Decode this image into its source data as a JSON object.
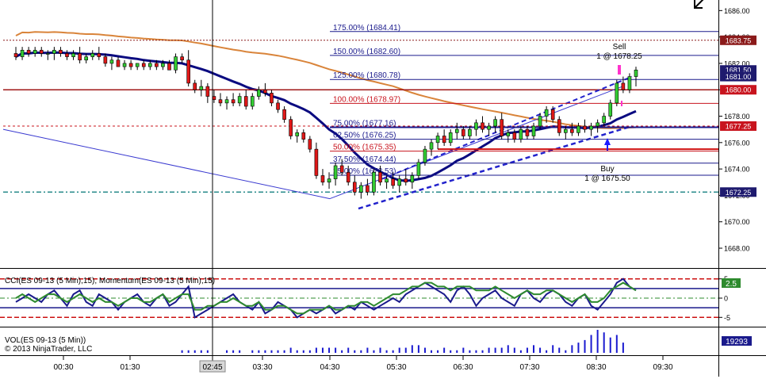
{
  "chart_data": {
    "type": "candlestick",
    "instrument": "ES 09-13",
    "copyright": "© 2013 NinjaTrader, LLC",
    "price_axis": {
      "range": [
        1666.5,
        1686.8
      ],
      "ticks": [
        "1686.00",
        "1684.00",
        "1682.00",
        "1680.00",
        "1678.00",
        "1676.00",
        "1674.00",
        "1672.00",
        "1670.00",
        "1668.00"
      ]
    },
    "time_axis": {
      "labels": [
        "00:30",
        "01:30",
        "02:45",
        "03:30",
        "04:30",
        "05:30",
        "06:30",
        "07:30",
        "08:30",
        "09:30"
      ],
      "crosshair_label": "02:45"
    },
    "price_markers": [
      {
        "label": "1683.75",
        "color": "#8b1a1a"
      },
      {
        "label": "1681.50",
        "color": "#1e1a6e"
      },
      {
        "label": "1681.00",
        "color": "#1e1a6e"
      },
      {
        "label": "1680.00",
        "color": "#c8141e"
      },
      {
        "label": "1677.25",
        "color": "#c8141e"
      },
      {
        "label": "1672.25",
        "color": "#1e1a6e"
      }
    ],
    "fibonacci_levels": [
      {
        "label": "175.00% (1684.41)",
        "price": 1684.41,
        "color": "#1a1a8c"
      },
      {
        "label": "150.00% (1682.60)",
        "price": 1682.6,
        "color": "#1a1a8c"
      },
      {
        "label": "125.00% (1680.78)",
        "price": 1680.78,
        "color": "#1a1a8c"
      },
      {
        "label": "100.00% (1678.97)",
        "price": 1678.97,
        "color": "#c8141e"
      },
      {
        "label": "75.00% (1677.16)",
        "price": 1677.16,
        "color": "#1a1a8c"
      },
      {
        "label": "62.50% (1676.25)",
        "price": 1676.25,
        "color": "#1a1a8c"
      },
      {
        "label": "50.00% (1675.35)",
        "price": 1675.35,
        "color": "#c8141e"
      },
      {
        "label": "37.50% (1674.44)",
        "price": 1674.44,
        "color": "#1a1a8c"
      },
      {
        "label": "25.00% (1673.53)",
        "price": 1673.53,
        "color": "#1a1a8c"
      }
    ],
    "sell_label": "Sell",
    "sell_detail": "1 @ 1678.25",
    "buy_label": "Buy",
    "buy_detail": "1 @ 1675.50",
    "oscillator": {
      "title": "CCI(ES 09-13 (5 Min),15), Momentum(ES 09-13 (5 Min),15)",
      "ticks": [
        "5",
        "0",
        "-5"
      ],
      "range": [
        -7,
        7
      ],
      "value_label": "2.5",
      "value": 2.5
    },
    "volume": {
      "title": "VOL(ES 09-13 (5 Min))",
      "value_label": "19293"
    },
    "candles": [
      {
        "o": 1682.75,
        "h": 1683.25,
        "l": 1682.25,
        "c": 1682.5
      },
      {
        "o": 1682.5,
        "h": 1683.25,
        "l": 1682.25,
        "c": 1683.0
      },
      {
        "o": 1683.0,
        "h": 1683.25,
        "l": 1682.5,
        "c": 1682.75
      },
      {
        "o": 1682.75,
        "h": 1683.25,
        "l": 1682.5,
        "c": 1683.0
      },
      {
        "o": 1683.0,
        "h": 1683.25,
        "l": 1682.5,
        "c": 1682.75
      },
      {
        "o": 1682.75,
        "h": 1683.0,
        "l": 1682.25,
        "c": 1682.75
      },
      {
        "o": 1682.75,
        "h": 1683.25,
        "l": 1682.25,
        "c": 1683.0
      },
      {
        "o": 1683.0,
        "h": 1683.25,
        "l": 1682.5,
        "c": 1682.75
      },
      {
        "o": 1682.75,
        "h": 1683.0,
        "l": 1682.25,
        "c": 1682.5
      },
      {
        "o": 1682.5,
        "h": 1683.0,
        "l": 1682.25,
        "c": 1682.75
      },
      {
        "o": 1682.75,
        "h": 1683.25,
        "l": 1682.0,
        "c": 1682.25
      },
      {
        "o": 1682.25,
        "h": 1682.75,
        "l": 1682.0,
        "c": 1682.5
      },
      {
        "o": 1682.5,
        "h": 1683.0,
        "l": 1682.25,
        "c": 1682.75
      },
      {
        "o": 1682.75,
        "h": 1683.25,
        "l": 1682.25,
        "c": 1682.5
      },
      {
        "o": 1682.5,
        "h": 1682.75,
        "l": 1681.75,
        "c": 1682.0
      },
      {
        "o": 1682.0,
        "h": 1682.5,
        "l": 1681.5,
        "c": 1682.25
      },
      {
        "o": 1682.25,
        "h": 1682.5,
        "l": 1681.75,
        "c": 1681.75
      },
      {
        "o": 1681.75,
        "h": 1682.25,
        "l": 1681.5,
        "c": 1682.0
      },
      {
        "o": 1682.0,
        "h": 1682.25,
        "l": 1681.5,
        "c": 1681.75
      },
      {
        "o": 1681.75,
        "h": 1682.0,
        "l": 1681.5,
        "c": 1682.0
      },
      {
        "o": 1682.0,
        "h": 1682.25,
        "l": 1681.5,
        "c": 1681.75
      },
      {
        "o": 1681.75,
        "h": 1682.25,
        "l": 1681.5,
        "c": 1682.0
      },
      {
        "o": 1682.0,
        "h": 1682.25,
        "l": 1681.5,
        "c": 1681.75
      },
      {
        "o": 1681.75,
        "h": 1682.25,
        "l": 1681.5,
        "c": 1682.0
      },
      {
        "o": 1682.0,
        "h": 1682.25,
        "l": 1681.5,
        "c": 1681.5
      },
      {
        "o": 1681.5,
        "h": 1682.75,
        "l": 1681.25,
        "c": 1682.5
      },
      {
        "o": 1682.5,
        "h": 1682.75,
        "l": 1682.0,
        "c": 1682.25
      },
      {
        "o": 1682.25,
        "h": 1683.0,
        "l": 1680.25,
        "c": 1680.5
      },
      {
        "o": 1680.5,
        "h": 1680.75,
        "l": 1679.75,
        "c": 1680.0
      },
      {
        "o": 1680.0,
        "h": 1680.75,
        "l": 1679.5,
        "c": 1680.25
      },
      {
        "o": 1680.25,
        "h": 1680.5,
        "l": 1679.0,
        "c": 1679.5
      },
      {
        "o": 1679.5,
        "h": 1680.0,
        "l": 1679.0,
        "c": 1679.25
      },
      {
        "o": 1679.25,
        "h": 1679.75,
        "l": 1678.75,
        "c": 1679.0
      },
      {
        "o": 1679.0,
        "h": 1679.5,
        "l": 1678.5,
        "c": 1679.25
      },
      {
        "o": 1679.25,
        "h": 1679.75,
        "l": 1678.75,
        "c": 1679.0
      },
      {
        "o": 1679.0,
        "h": 1679.75,
        "l": 1678.75,
        "c": 1679.5
      },
      {
        "o": 1679.5,
        "h": 1680.0,
        "l": 1678.5,
        "c": 1678.75
      },
      {
        "o": 1678.75,
        "h": 1679.75,
        "l": 1678.5,
        "c": 1679.5
      },
      {
        "o": 1679.5,
        "h": 1680.25,
        "l": 1679.25,
        "c": 1680.0
      },
      {
        "o": 1680.0,
        "h": 1680.5,
        "l": 1679.5,
        "c": 1679.75
      },
      {
        "o": 1679.75,
        "h": 1680.0,
        "l": 1678.75,
        "c": 1679.0
      },
      {
        "o": 1679.0,
        "h": 1679.25,
        "l": 1678.25,
        "c": 1678.5
      },
      {
        "o": 1678.5,
        "h": 1678.75,
        "l": 1677.5,
        "c": 1677.75
      },
      {
        "o": 1677.75,
        "h": 1678.0,
        "l": 1676.25,
        "c": 1676.5
      },
      {
        "o": 1676.5,
        "h": 1677.0,
        "l": 1676.0,
        "c": 1676.75
      },
      {
        "o": 1676.75,
        "h": 1677.0,
        "l": 1676.0,
        "c": 1676.25
      },
      {
        "o": 1676.25,
        "h": 1676.5,
        "l": 1675.25,
        "c": 1675.5
      },
      {
        "o": 1675.5,
        "h": 1676.0,
        "l": 1673.25,
        "c": 1673.5
      },
      {
        "o": 1673.5,
        "h": 1674.0,
        "l": 1672.75,
        "c": 1673.0
      },
      {
        "o": 1673.0,
        "h": 1673.75,
        "l": 1672.5,
        "c": 1673.25
      },
      {
        "o": 1673.25,
        "h": 1674.5,
        "l": 1672.75,
        "c": 1674.25
      },
      {
        "o": 1674.25,
        "h": 1674.75,
        "l": 1673.5,
        "c": 1673.75
      },
      {
        "o": 1673.75,
        "h": 1674.25,
        "l": 1672.75,
        "c": 1673.0
      },
      {
        "o": 1673.0,
        "h": 1673.5,
        "l": 1672.0,
        "c": 1672.25
      },
      {
        "o": 1672.25,
        "h": 1673.0,
        "l": 1671.75,
        "c": 1672.75
      },
      {
        "o": 1672.75,
        "h": 1673.25,
        "l": 1672.0,
        "c": 1672.25
      },
      {
        "o": 1672.25,
        "h": 1674.0,
        "l": 1672.0,
        "c": 1673.75
      },
      {
        "o": 1673.75,
        "h": 1674.25,
        "l": 1672.75,
        "c": 1673.0
      },
      {
        "o": 1673.0,
        "h": 1673.5,
        "l": 1672.5,
        "c": 1673.25
      },
      {
        "o": 1673.25,
        "h": 1673.75,
        "l": 1672.5,
        "c": 1672.75
      },
      {
        "o": 1672.75,
        "h": 1673.5,
        "l": 1672.25,
        "c": 1673.25
      },
      {
        "o": 1673.25,
        "h": 1674.0,
        "l": 1672.75,
        "c": 1673.0
      },
      {
        "o": 1673.0,
        "h": 1673.75,
        "l": 1672.5,
        "c": 1673.5
      },
      {
        "o": 1673.5,
        "h": 1674.75,
        "l": 1673.25,
        "c": 1674.5
      },
      {
        "o": 1674.5,
        "h": 1675.75,
        "l": 1674.25,
        "c": 1675.5
      },
      {
        "o": 1675.5,
        "h": 1676.25,
        "l": 1675.0,
        "c": 1676.0
      },
      {
        "o": 1676.0,
        "h": 1676.75,
        "l": 1675.5,
        "c": 1676.5
      },
      {
        "o": 1676.5,
        "h": 1677.0,
        "l": 1675.75,
        "c": 1676.0
      },
      {
        "o": 1676.0,
        "h": 1677.0,
        "l": 1675.75,
        "c": 1676.75
      },
      {
        "o": 1676.75,
        "h": 1677.5,
        "l": 1676.25,
        "c": 1677.0
      },
      {
        "o": 1677.0,
        "h": 1677.25,
        "l": 1676.25,
        "c": 1676.5
      },
      {
        "o": 1676.5,
        "h": 1677.25,
        "l": 1676.25,
        "c": 1677.0
      },
      {
        "o": 1677.0,
        "h": 1677.75,
        "l": 1676.5,
        "c": 1677.5
      },
      {
        "o": 1677.5,
        "h": 1678.0,
        "l": 1676.75,
        "c": 1677.0
      },
      {
        "o": 1677.0,
        "h": 1677.5,
        "l": 1676.5,
        "c": 1677.25
      },
      {
        "o": 1677.25,
        "h": 1678.0,
        "l": 1676.75,
        "c": 1677.75
      },
      {
        "o": 1677.75,
        "h": 1678.25,
        "l": 1676.25,
        "c": 1676.5
      },
      {
        "o": 1676.5,
        "h": 1677.0,
        "l": 1676.0,
        "c": 1676.75
      },
      {
        "o": 1676.75,
        "h": 1677.0,
        "l": 1676.0,
        "c": 1676.25
      },
      {
        "o": 1676.25,
        "h": 1677.25,
        "l": 1676.0,
        "c": 1677.0
      },
      {
        "o": 1677.0,
        "h": 1677.25,
        "l": 1676.25,
        "c": 1676.5
      },
      {
        "o": 1676.5,
        "h": 1677.5,
        "l": 1676.25,
        "c": 1677.25
      },
      {
        "o": 1677.25,
        "h": 1678.25,
        "l": 1677.0,
        "c": 1678.0
      },
      {
        "o": 1678.0,
        "h": 1678.75,
        "l": 1677.5,
        "c": 1678.5
      },
      {
        "o": 1678.5,
        "h": 1678.75,
        "l": 1677.5,
        "c": 1677.75
      },
      {
        "o": 1677.75,
        "h": 1678.0,
        "l": 1676.5,
        "c": 1676.75
      },
      {
        "o": 1676.75,
        "h": 1677.25,
        "l": 1676.25,
        "c": 1677.0
      },
      {
        "o": 1677.0,
        "h": 1677.5,
        "l": 1676.5,
        "c": 1676.75
      },
      {
        "o": 1676.75,
        "h": 1677.5,
        "l": 1676.5,
        "c": 1677.25
      },
      {
        "o": 1677.25,
        "h": 1677.75,
        "l": 1676.75,
        "c": 1677.0
      },
      {
        "o": 1677.0,
        "h": 1677.5,
        "l": 1676.5,
        "c": 1677.25
      },
      {
        "o": 1677.25,
        "h": 1677.75,
        "l": 1676.75,
        "c": 1677.5
      },
      {
        "o": 1677.5,
        "h": 1678.25,
        "l": 1677.25,
        "c": 1678.0
      },
      {
        "o": 1678.0,
        "h": 1679.25,
        "l": 1677.75,
        "c": 1679.0
      },
      {
        "o": 1679.0,
        "h": 1680.75,
        "l": 1678.75,
        "c": 1680.5
      },
      {
        "o": 1680.5,
        "h": 1681.0,
        "l": 1679.75,
        "c": 1680.0
      },
      {
        "o": 1680.0,
        "h": 1681.25,
        "l": 1679.75,
        "c": 1681.0
      },
      {
        "o": 1681.0,
        "h": 1681.75,
        "l": 1680.25,
        "c": 1681.5
      }
    ],
    "oscillator_series": [
      {
        "name": "CCI",
        "color": "#1a1a8c",
        "values": [
          -1,
          0,
          1,
          0,
          -1,
          1,
          2,
          0,
          -2,
          1,
          2,
          -1,
          -2,
          1,
          0,
          -1,
          -3,
          -1,
          0,
          1,
          -1,
          -2,
          0,
          1,
          -2,
          -1,
          1,
          3,
          -5,
          -4,
          -3,
          -2,
          -1,
          0,
          1,
          -1,
          -2,
          -3,
          -1,
          -4,
          -3,
          -1,
          -2,
          -3,
          -5,
          -4,
          -3,
          -4,
          -3,
          -2,
          -4,
          -3,
          -2,
          -3,
          -1,
          -2,
          -3,
          -2,
          -1,
          0,
          -1,
          1,
          2,
          3,
          4,
          3,
          2,
          1,
          -1,
          2,
          3,
          1,
          -2,
          0,
          1,
          2,
          0,
          -1,
          -2,
          1,
          2,
          0,
          -1,
          1,
          2,
          1,
          -1,
          -2,
          0,
          1,
          -2,
          -3,
          -1,
          1,
          4,
          5,
          3,
          2
        ]
      },
      {
        "name": "Momentum",
        "color": "#2e8b2e",
        "values": [
          0,
          1,
          0,
          -1,
          0,
          1,
          1,
          0,
          -1,
          0,
          1,
          0,
          -1,
          0,
          -1,
          -1,
          -2,
          -1,
          0,
          0,
          -1,
          -1,
          0,
          1,
          -1,
          0,
          1,
          1,
          -3,
          -3,
          -2,
          -2,
          -1,
          -1,
          0,
          -1,
          -2,
          -2,
          -1,
          -3,
          -3,
          -2,
          -2,
          -3,
          -4,
          -4,
          -3,
          -3,
          -3,
          -2,
          -3,
          -3,
          -2,
          -2,
          -1,
          -1,
          -2,
          -1,
          0,
          1,
          1,
          2,
          3,
          3,
          4,
          4,
          3,
          3,
          2,
          3,
          3,
          3,
          2,
          2,
          2,
          3,
          2,
          1,
          0,
          1,
          2,
          1,
          1,
          2,
          2,
          1,
          0,
          -1,
          0,
          1,
          -1,
          -1,
          0,
          2,
          3,
          4,
          3,
          2
        ]
      }
    ],
    "volume_values": [
      0,
      0,
      0,
      0,
      0,
      0,
      0,
      0,
      0,
      0,
      0,
      0,
      0,
      0,
      0,
      0,
      0,
      0,
      0,
      0,
      0,
      0,
      0,
      0,
      0,
      0,
      1,
      1,
      1,
      1,
      1,
      0,
      0,
      1,
      1,
      1,
      0,
      1,
      1,
      1,
      1,
      1,
      1,
      2,
      1,
      1,
      1,
      2,
      2,
      2,
      2,
      1,
      2,
      1,
      1,
      2,
      1,
      2,
      1,
      1,
      2,
      2,
      3,
      3,
      2,
      1,
      1,
      2,
      1,
      1,
      2,
      1,
      1,
      1,
      2,
      2,
      2,
      3,
      2,
      1,
      2,
      3,
      2,
      1,
      3,
      2,
      1,
      3,
      4,
      5,
      7,
      9,
      8,
      6,
      7,
      4
    ]
  }
}
